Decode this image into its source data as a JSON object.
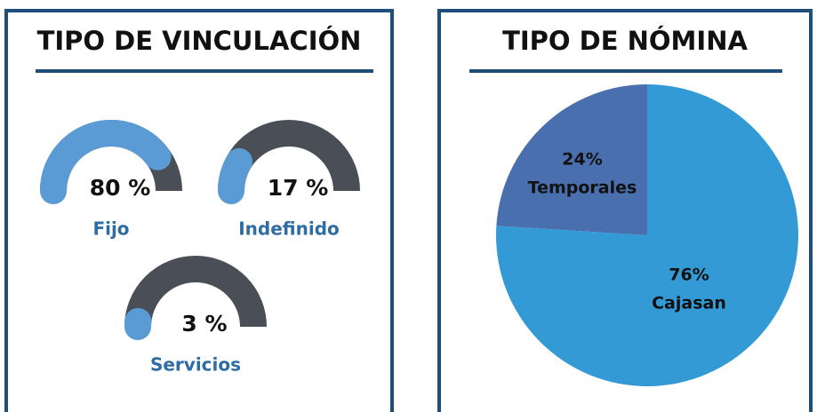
{
  "chart_data": [
    {
      "type": "gauge",
      "title": "TIPO DE VINCULACIÓN",
      "categories": [
        "Fijo",
        "Indefinido",
        "Servicios"
      ],
      "values": [
        80,
        17,
        3
      ],
      "value_labels": [
        "80 %",
        "17 %",
        "3 %"
      ],
      "color": "#5b9bd5",
      "track_color": "#4a4f57"
    },
    {
      "type": "pie",
      "title": "TIPO DE NÓMINA",
      "categories": [
        "Temporales",
        "Cajasan"
      ],
      "values": [
        24,
        76
      ],
      "value_labels": [
        "24%",
        "76%"
      ],
      "colors": [
        "#4a6fae",
        "#339ad6"
      ]
    }
  ]
}
